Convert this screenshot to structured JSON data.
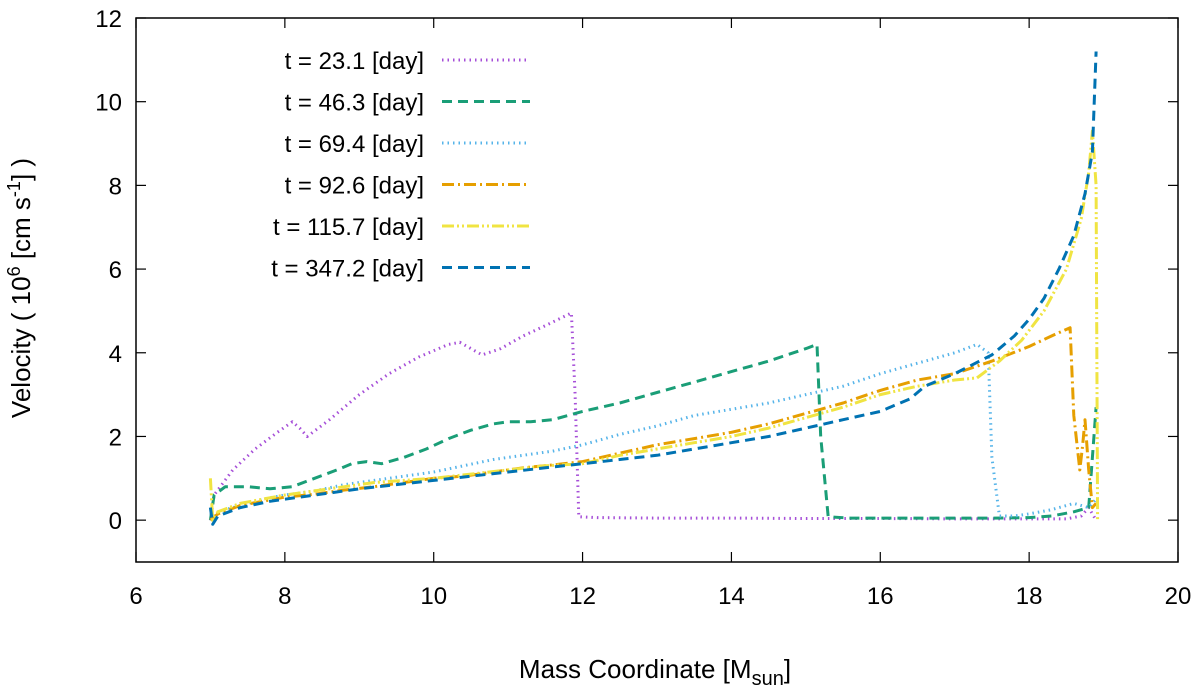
{
  "chart_data": {
    "type": "line",
    "title": "",
    "xlabel": {
      "main": "Mass Coordinate [M",
      "sub": "sun",
      "end": "]"
    },
    "ylabel": {
      "pre": "Velocity ( 10",
      "sup1": "6",
      "mid": " [cm s",
      "sup2": "-1",
      "end": "] )"
    },
    "xlim": [
      6,
      20
    ],
    "ylim": [
      -1,
      12
    ],
    "xticks": [
      6,
      8,
      10,
      12,
      14,
      16,
      18,
      20
    ],
    "yticks": [
      0,
      2,
      4,
      6,
      8,
      10,
      12
    ],
    "legend_position": "top-left",
    "series": [
      {
        "name": "t = 23.1 [day]",
        "color": "#a64fd8",
        "dash": "1.5 4",
        "points": [
          [
            7.0,
            0.0
          ],
          [
            7.05,
            0.6
          ],
          [
            7.3,
            1.2
          ],
          [
            7.6,
            1.7
          ],
          [
            7.9,
            2.1
          ],
          [
            8.1,
            2.35
          ],
          [
            8.2,
            2.2
          ],
          [
            8.3,
            2.0
          ],
          [
            8.6,
            2.4
          ],
          [
            9.0,
            3.0
          ],
          [
            9.4,
            3.5
          ],
          [
            9.8,
            3.9
          ],
          [
            10.2,
            4.2
          ],
          [
            10.35,
            4.25
          ],
          [
            10.5,
            4.1
          ],
          [
            10.65,
            3.95
          ],
          [
            10.9,
            4.1
          ],
          [
            11.2,
            4.4
          ],
          [
            11.5,
            4.65
          ],
          [
            11.85,
            4.95
          ],
          [
            11.9,
            3.0
          ],
          [
            11.95,
            0.08
          ],
          [
            12.2,
            0.06
          ],
          [
            13.0,
            0.05
          ],
          [
            14.0,
            0.05
          ],
          [
            15.0,
            0.04
          ],
          [
            16.0,
            0.04
          ],
          [
            17.0,
            0.03
          ],
          [
            18.0,
            0.03
          ],
          [
            18.5,
            0.03
          ],
          [
            18.7,
            0.1
          ],
          [
            18.8,
            0.3
          ],
          [
            18.9,
            0.0
          ]
        ]
      },
      {
        "name": "t = 46.3 [day]",
        "color": "#1a9e77",
        "dash": "10 6",
        "points": [
          [
            7.0,
            0.0
          ],
          [
            7.05,
            0.6
          ],
          [
            7.2,
            0.8
          ],
          [
            7.5,
            0.8
          ],
          [
            7.8,
            0.75
          ],
          [
            8.1,
            0.8
          ],
          [
            8.4,
            1.0
          ],
          [
            8.7,
            1.2
          ],
          [
            8.9,
            1.35
          ],
          [
            9.1,
            1.4
          ],
          [
            9.3,
            1.35
          ],
          [
            9.6,
            1.5
          ],
          [
            9.9,
            1.7
          ],
          [
            10.2,
            1.95
          ],
          [
            10.5,
            2.15
          ],
          [
            10.8,
            2.3
          ],
          [
            11.0,
            2.35
          ],
          [
            11.3,
            2.35
          ],
          [
            11.6,
            2.4
          ],
          [
            12.0,
            2.6
          ],
          [
            12.5,
            2.8
          ],
          [
            13.0,
            3.05
          ],
          [
            13.5,
            3.3
          ],
          [
            14.0,
            3.55
          ],
          [
            14.5,
            3.8
          ],
          [
            15.0,
            4.1
          ],
          [
            15.15,
            4.2
          ],
          [
            15.2,
            2.0
          ],
          [
            15.3,
            0.08
          ],
          [
            15.6,
            0.05
          ],
          [
            16.0,
            0.05
          ],
          [
            17.0,
            0.05
          ],
          [
            17.5,
            0.05
          ],
          [
            18.0,
            0.06
          ],
          [
            18.3,
            0.1
          ],
          [
            18.6,
            0.2
          ],
          [
            18.8,
            0.3
          ],
          [
            18.9,
            2.7
          ]
        ]
      },
      {
        "name": "t = 69.4 [day]",
        "color": "#56b4e9",
        "dash": "1.5 4",
        "points": [
          [
            7.0,
            0.0
          ],
          [
            7.1,
            0.2
          ],
          [
            7.4,
            0.35
          ],
          [
            7.7,
            0.5
          ],
          [
            8.0,
            0.6
          ],
          [
            8.4,
            0.7
          ],
          [
            8.8,
            0.85
          ],
          [
            9.2,
            0.95
          ],
          [
            9.6,
            1.05
          ],
          [
            10.0,
            1.15
          ],
          [
            10.4,
            1.3
          ],
          [
            10.8,
            1.45
          ],
          [
            11.2,
            1.55
          ],
          [
            11.6,
            1.65
          ],
          [
            12.0,
            1.8
          ],
          [
            12.5,
            2.05
          ],
          [
            13.0,
            2.25
          ],
          [
            13.5,
            2.5
          ],
          [
            14.0,
            2.65
          ],
          [
            14.5,
            2.8
          ],
          [
            15.0,
            3.0
          ],
          [
            15.5,
            3.2
          ],
          [
            16.0,
            3.5
          ],
          [
            16.5,
            3.75
          ],
          [
            17.0,
            4.0
          ],
          [
            17.3,
            4.2
          ],
          [
            17.45,
            4.0
          ],
          [
            17.5,
            1.5
          ],
          [
            17.6,
            0.1
          ],
          [
            17.8,
            0.1
          ],
          [
            18.0,
            0.15
          ],
          [
            18.3,
            0.25
          ],
          [
            18.6,
            0.4
          ],
          [
            18.7,
            0.35
          ],
          [
            18.8,
            0.3
          ],
          [
            18.9,
            0.5
          ]
        ]
      },
      {
        "name": "t = 92.6 [day]",
        "color": "#e69f00",
        "dash": "12 4 2 4",
        "points": [
          [
            7.0,
            0.0
          ],
          [
            7.1,
            0.15
          ],
          [
            7.4,
            0.35
          ],
          [
            7.7,
            0.45
          ],
          [
            8.0,
            0.55
          ],
          [
            8.4,
            0.62
          ],
          [
            8.8,
            0.72
          ],
          [
            9.2,
            0.8
          ],
          [
            9.6,
            0.9
          ],
          [
            10.0,
            1.0
          ],
          [
            10.4,
            1.05
          ],
          [
            10.8,
            1.15
          ],
          [
            11.2,
            1.25
          ],
          [
            11.6,
            1.32
          ],
          [
            12.0,
            1.4
          ],
          [
            12.5,
            1.6
          ],
          [
            13.0,
            1.8
          ],
          [
            13.5,
            1.95
          ],
          [
            14.0,
            2.1
          ],
          [
            14.5,
            2.3
          ],
          [
            15.0,
            2.55
          ],
          [
            15.5,
            2.8
          ],
          [
            16.0,
            3.1
          ],
          [
            16.5,
            3.35
          ],
          [
            17.0,
            3.5
          ],
          [
            17.5,
            3.8
          ],
          [
            18.0,
            4.15
          ],
          [
            18.3,
            4.4
          ],
          [
            18.55,
            4.6
          ],
          [
            18.6,
            2.5
          ],
          [
            18.68,
            1.2
          ],
          [
            18.72,
            1.8
          ],
          [
            18.75,
            2.4
          ],
          [
            18.8,
            1.2
          ],
          [
            18.85,
            0.3
          ],
          [
            18.9,
            0.4
          ]
        ]
      },
      {
        "name": "t = 115.7 [day]",
        "color": "#f0e442",
        "dash": "12 3 2 3 2 3",
        "points": [
          [
            7.0,
            1.0
          ],
          [
            7.03,
            0.0
          ],
          [
            7.1,
            0.2
          ],
          [
            7.4,
            0.4
          ],
          [
            7.7,
            0.5
          ],
          [
            8.0,
            0.6
          ],
          [
            8.4,
            0.7
          ],
          [
            8.8,
            0.8
          ],
          [
            9.2,
            0.9
          ],
          [
            9.6,
            0.95
          ],
          [
            10.0,
            1.0
          ],
          [
            10.5,
            1.1
          ],
          [
            11.0,
            1.2
          ],
          [
            11.5,
            1.3
          ],
          [
            12.0,
            1.35
          ],
          [
            12.5,
            1.55
          ],
          [
            13.0,
            1.7
          ],
          [
            13.5,
            1.85
          ],
          [
            14.0,
            2.0
          ],
          [
            14.5,
            2.2
          ],
          [
            15.0,
            2.45
          ],
          [
            15.5,
            2.7
          ],
          [
            16.0,
            3.0
          ],
          [
            16.5,
            3.2
          ],
          [
            17.0,
            3.35
          ],
          [
            17.3,
            3.4
          ],
          [
            17.6,
            3.8
          ],
          [
            17.9,
            4.3
          ],
          [
            18.2,
            5.0
          ],
          [
            18.5,
            6.0
          ],
          [
            18.7,
            7.2
          ],
          [
            18.8,
            8.3
          ],
          [
            18.85,
            9.3
          ],
          [
            18.9,
            8.0
          ],
          [
            18.92,
            0.0
          ]
        ]
      },
      {
        "name": "t = 347.2 [day]",
        "color": "#0072b2",
        "dash": "10 6",
        "points": [
          [
            7.0,
            0.3
          ],
          [
            7.03,
            -0.1
          ],
          [
            7.1,
            0.1
          ],
          [
            7.4,
            0.3
          ],
          [
            7.8,
            0.45
          ],
          [
            8.2,
            0.55
          ],
          [
            8.6,
            0.65
          ],
          [
            9.0,
            0.75
          ],
          [
            9.5,
            0.85
          ],
          [
            10.0,
            0.95
          ],
          [
            10.5,
            1.05
          ],
          [
            11.0,
            1.15
          ],
          [
            11.5,
            1.25
          ],
          [
            12.0,
            1.35
          ],
          [
            12.5,
            1.45
          ],
          [
            13.0,
            1.55
          ],
          [
            13.5,
            1.7
          ],
          [
            14.0,
            1.85
          ],
          [
            14.5,
            2.0
          ],
          [
            15.0,
            2.2
          ],
          [
            15.5,
            2.4
          ],
          [
            16.0,
            2.6
          ],
          [
            16.4,
            2.9
          ],
          [
            16.6,
            3.2
          ],
          [
            17.0,
            3.5
          ],
          [
            17.5,
            3.95
          ],
          [
            17.8,
            4.4
          ],
          [
            18.0,
            4.8
          ],
          [
            18.2,
            5.3
          ],
          [
            18.4,
            6.0
          ],
          [
            18.6,
            6.8
          ],
          [
            18.75,
            7.8
          ],
          [
            18.85,
            8.8
          ],
          [
            18.9,
            11.2
          ]
        ]
      }
    ]
  }
}
